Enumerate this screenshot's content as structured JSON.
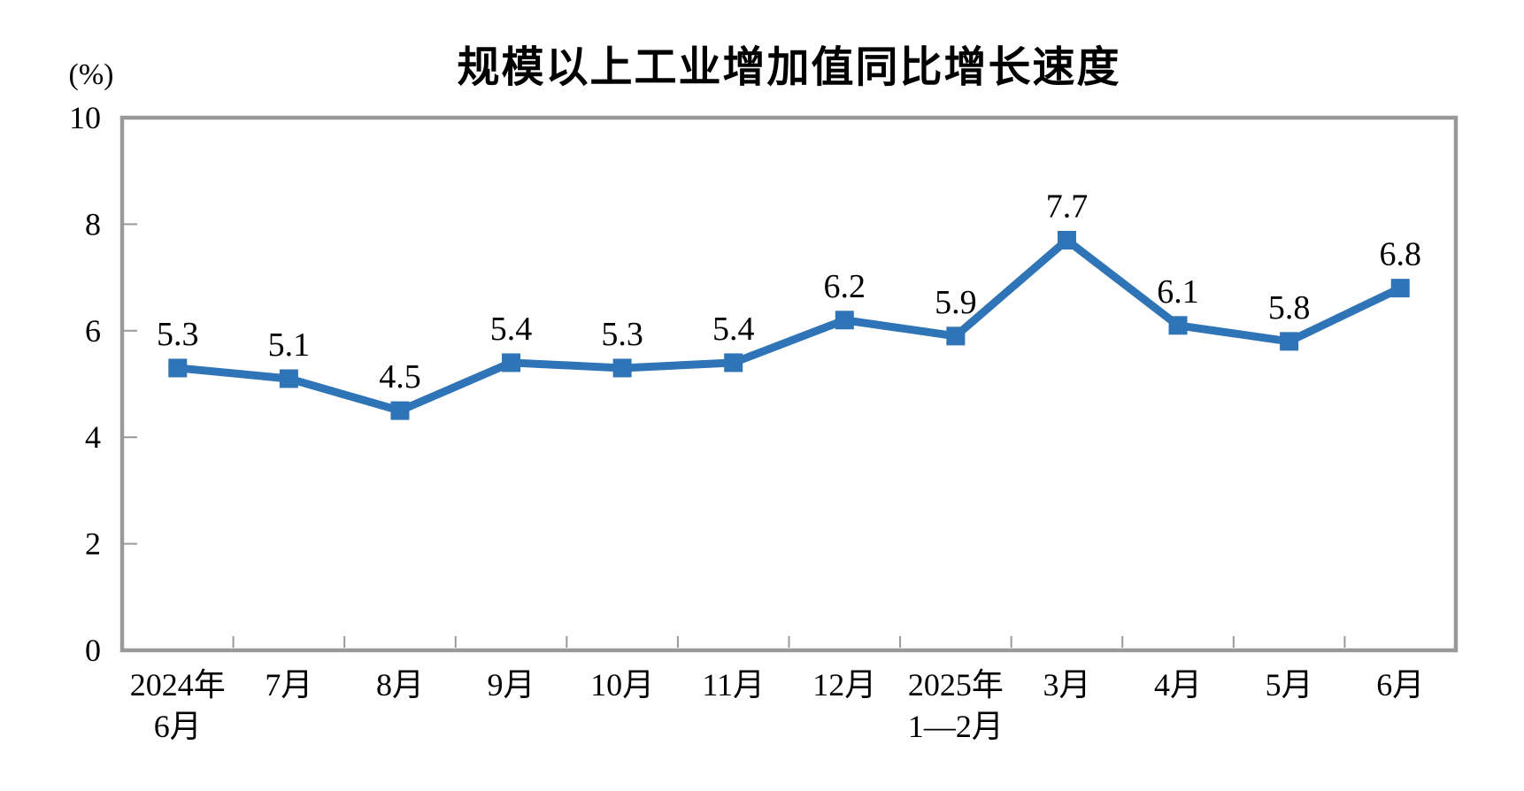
{
  "chart_data": {
    "type": "line",
    "title": "规模以上工业增加值同比增长速度",
    "unit_label": "(%)",
    "categories": [
      [
        "2024年",
        "6月"
      ],
      [
        "7月"
      ],
      [
        "8月"
      ],
      [
        "9月"
      ],
      [
        "10月"
      ],
      [
        "11月"
      ],
      [
        "12月"
      ],
      [
        "2025年",
        "1—2月"
      ],
      [
        "3月"
      ],
      [
        "4月"
      ],
      [
        "5月"
      ],
      [
        "6月"
      ]
    ],
    "values": [
      5.3,
      5.1,
      4.5,
      5.4,
      5.3,
      5.4,
      6.2,
      5.9,
      7.7,
      6.1,
      5.8,
      6.8
    ],
    "data_labels": [
      "5.3",
      "5.1",
      "4.5",
      "5.4",
      "5.3",
      "5.4",
      "6.2",
      "5.9",
      "7.7",
      "6.1",
      "5.8",
      "6.8"
    ],
    "y_ticks": [
      0,
      2,
      4,
      6,
      8,
      10
    ],
    "ylim": [
      0,
      10
    ],
    "grid": false,
    "legend_position": "none",
    "line_color": "#2E74B6",
    "marker": "square",
    "axis_color": "#999999",
    "text_color": "#000000"
  }
}
